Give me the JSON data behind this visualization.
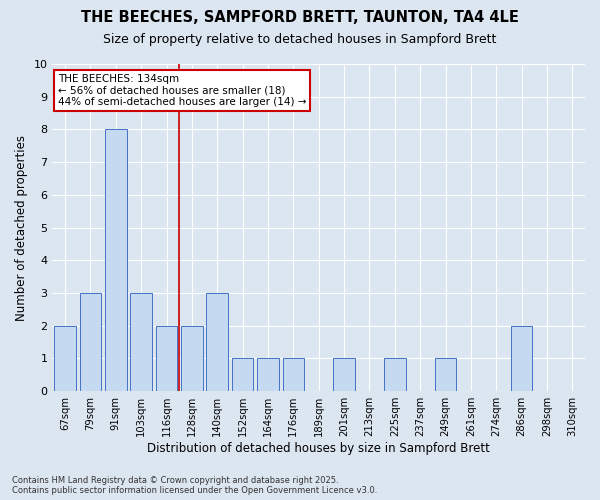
{
  "title1": "THE BEECHES, SAMPFORD BRETT, TAUNTON, TA4 4LE",
  "title2": "Size of property relative to detached houses in Sampford Brett",
  "xlabel": "Distribution of detached houses by size in Sampford Brett",
  "ylabel": "Number of detached properties",
  "footnote": "Contains HM Land Registry data © Crown copyright and database right 2025.\nContains public sector information licensed under the Open Government Licence v3.0.",
  "categories": [
    "67sqm",
    "79sqm",
    "91sqm",
    "103sqm",
    "116sqm",
    "128sqm",
    "140sqm",
    "152sqm",
    "164sqm",
    "176sqm",
    "189sqm",
    "201sqm",
    "213sqm",
    "225sqm",
    "237sqm",
    "249sqm",
    "261sqm",
    "274sqm",
    "286sqm",
    "298sqm",
    "310sqm"
  ],
  "values": [
    2,
    3,
    8,
    3,
    2,
    2,
    3,
    1,
    1,
    1,
    0,
    1,
    0,
    1,
    0,
    1,
    0,
    0,
    2,
    0,
    0
  ],
  "bar_color": "#c5d9f0",
  "bar_edge_color": "#4472c4",
  "background_color": "#dce6f1",
  "plot_bg_color": "#dce6f1",
  "grid_color": "#ffffff",
  "annotation_text": "THE BEECHES: 134sqm\n← 56% of detached houses are smaller (18)\n44% of semi-detached houses are larger (14) →",
  "vline_x": 4.5,
  "vline_color": "#cc0000",
  "annotation_box_color": "#cc0000",
  "ylim": [
    0,
    10
  ],
  "yticks": [
    0,
    1,
    2,
    3,
    4,
    5,
    6,
    7,
    8,
    9,
    10
  ]
}
